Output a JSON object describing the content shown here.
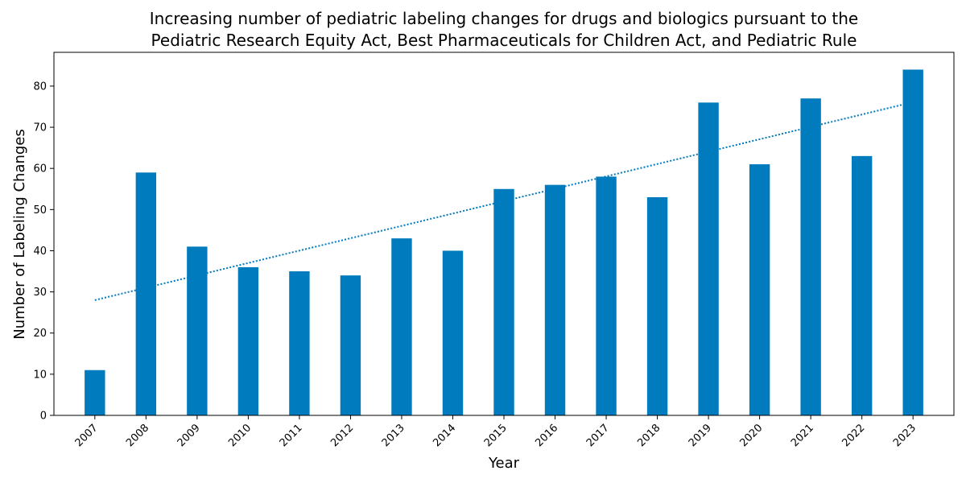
{
  "chart_data": {
    "type": "bar",
    "title_lines": [
      "Increasing number of pediatric labeling changes for drugs and biologics pursuant to the",
      "Pediatric Research Equity Act, Best Pharmaceuticals for Children Act, and Pediatric Rule"
    ],
    "xlabel": "Year",
    "ylabel": "Number of Labeling Changes",
    "categories": [
      "2007",
      "2008",
      "2009",
      "2010",
      "2011",
      "2012",
      "2013",
      "2014",
      "2015",
      "2016",
      "2017",
      "2018",
      "2019",
      "2020",
      "2021",
      "2022",
      "2023"
    ],
    "values": [
      11,
      59,
      41,
      36,
      35,
      34,
      43,
      40,
      55,
      56,
      58,
      53,
      76,
      61,
      77,
      63,
      84
    ],
    "trendline": {
      "style": "dotted",
      "start": 28.0,
      "end": 76.1
    },
    "ylim": [
      0,
      88.2
    ],
    "yticks": [
      0,
      10,
      20,
      30,
      40,
      50,
      60,
      70,
      80
    ],
    "grid": false,
    "legend": "none",
    "colors": {
      "bar": "#007bbd",
      "trend": "#007bbd"
    }
  }
}
